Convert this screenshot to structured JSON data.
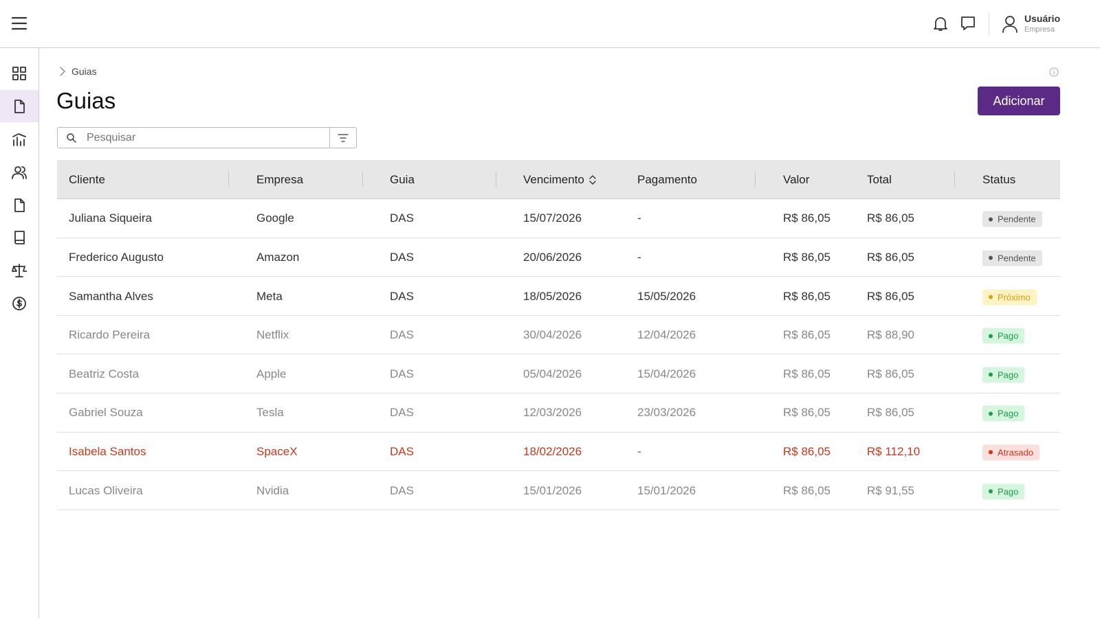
{
  "header": {
    "user_name": "Usuário",
    "user_company": "Empresa"
  },
  "breadcrumb": [
    "Guias"
  ],
  "page": {
    "title": "Guias",
    "add_button": "Adicionar",
    "search_placeholder": "Pesquisar"
  },
  "table": {
    "columns": [
      "Cliente",
      "Empresa",
      "Guia",
      "Vencimento",
      "Pagamento",
      "Valor",
      "Total",
      "Status"
    ],
    "rows": [
      {
        "cells": [
          "Juliana Siqueira",
          "Google",
          "DAS",
          "15/07/2026",
          "-",
          "R$ 86,05",
          "R$ 86,05"
        ],
        "status": "Pendente",
        "text_color": "#333333",
        "status_color": "#555555",
        "status_bg": "#e6e6e6"
      },
      {
        "cells": [
          "Frederico Augusto",
          "Amazon",
          "DAS",
          "20/06/2026",
          "-",
          "R$ 86,05",
          "R$ 86,05"
        ],
        "status": "Pendente",
        "text_color": "#333333",
        "status_color": "#555555",
        "status_bg": "#e6e6e6"
      },
      {
        "cells": [
          "Samantha Alves",
          "Meta",
          "DAS",
          "18/05/2026",
          "15/05/2026",
          "R$ 86,05",
          "R$ 86,05"
        ],
        "status": "Próximo",
        "text_color": "#333333",
        "status_color": "#d4a017",
        "status_bg": "#fdf3c4"
      },
      {
        "cells": [
          "Ricardo Pereira",
          "Netflix",
          "DAS",
          "30/04/2026",
          "12/04/2026",
          "R$ 86,05",
          "R$ 88,90"
        ],
        "status": "Pago",
        "text_color": "#888888",
        "status_color": "#1e9c4a",
        "status_bg": "#d6f5df"
      },
      {
        "cells": [
          "Beatriz Costa",
          "Apple",
          "DAS",
          "05/04/2026",
          "15/04/2026",
          "R$ 86,05",
          "R$ 86,05"
        ],
        "status": "Pago",
        "text_color": "#888888",
        "status_color": "#1e9c4a",
        "status_bg": "#d6f5df"
      },
      {
        "cells": [
          "Gabriel Souza",
          "Tesla",
          "DAS",
          "12/03/2026",
          "23/03/2026",
          "R$ 86,05",
          "R$ 86,05"
        ],
        "status": "Pago",
        "text_color": "#888888",
        "status_color": "#1e9c4a",
        "status_bg": "#d6f5df"
      },
      {
        "cells": [
          "Isabela Santos",
          "SpaceX",
          "DAS",
          "18/02/2026",
          "-",
          "R$ 86,05",
          "R$ 112,10"
        ],
        "status": "Atrasado",
        "text_color": "#c8381c",
        "status_color": "#c8381c",
        "status_bg": "#fbdede"
      },
      {
        "cells": [
          "Lucas Oliveira",
          "Nvidia",
          "DAS",
          "15/01/2026",
          "15/01/2026",
          "R$ 86,05",
          "R$ 91,55"
        ],
        "status": "Pago",
        "text_color": "#888888",
        "status_color": "#1e9c4a",
        "status_bg": "#d6f5df"
      }
    ]
  }
}
